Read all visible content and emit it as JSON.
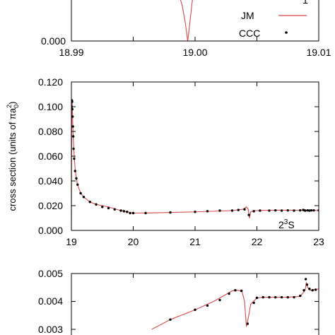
{
  "chart_data": [
    {
      "type": "line",
      "panel": "top",
      "xlim": [
        18.99,
        19.01
      ],
      "ylim": [
        0,
        0.02
      ],
      "xticks": [
        "18.99",
        "19.00",
        "19.01"
      ],
      "yticks": [
        "0.000"
      ],
      "legend": {
        "placement": "top-right",
        "entries": [
          {
            "label": "JM",
            "style": "line",
            "color": "#d9464a"
          },
          {
            "label": "CCC",
            "style": "dot",
            "color": "#000000"
          }
        ]
      },
      "series": [
        {
          "name": "JM",
          "color": "#d9464a",
          "x": [
            18.99865,
            18.99895,
            18.9992,
            18.99933,
            18.9994,
            18.99948,
            18.99963,
            18.99985
          ],
          "y": [
            0.02,
            0.015,
            0.008,
            0.003,
            0.0,
            0.003,
            0.01,
            0.02
          ]
        }
      ],
      "annotations": [
        {
          "text": "1",
          "position": "top-right",
          "note": "superscript S partially cropped"
        }
      ]
    },
    {
      "type": "line",
      "panel": "middle",
      "ylabel": "cross section (units of πa",
      "ylabel_sub": "0",
      "ylabel_sup": "2",
      "ylabel_end": ")",
      "xlim": [
        19,
        23
      ],
      "ylim": [
        0,
        0.12
      ],
      "xticks": [
        "19",
        "20",
        "21",
        "22",
        "23"
      ],
      "yticks": [
        "0.000",
        "0.020",
        "0.040",
        "0.060",
        "0.080",
        "0.100",
        "0.120"
      ],
      "annotation": {
        "pre": "2",
        "sup": "3",
        "post": "S",
        "position": "bottom-right"
      },
      "series": [
        {
          "name": "JM",
          "color": "#d9464a",
          "x": [
            19.0,
            19.005,
            19.01,
            19.015,
            19.02,
            19.03,
            19.045,
            19.06,
            19.08,
            19.1,
            19.15,
            19.2,
            19.3,
            19.4,
            19.6,
            19.8,
            20.0,
            20.3,
            20.6,
            21.0,
            21.3,
            21.6,
            21.78,
            21.83,
            21.86,
            21.88,
            21.9,
            21.95,
            22.0,
            22.1,
            22.3,
            22.5,
            22.7,
            22.77,
            22.8,
            22.83,
            22.87,
            22.92,
            23.0
          ],
          "y": [
            0.0,
            0.1,
            0.106,
            0.1,
            0.09,
            0.075,
            0.06,
            0.05,
            0.042,
            0.037,
            0.03,
            0.027,
            0.023,
            0.021,
            0.019,
            0.016,
            0.014,
            0.0142,
            0.0145,
            0.015,
            0.0155,
            0.016,
            0.0172,
            0.019,
            0.017,
            0.01,
            0.015,
            0.016,
            0.016,
            0.0162,
            0.0163,
            0.0163,
            0.0162,
            0.0168,
            0.0158,
            0.0164,
            0.0158,
            0.0162,
            0.0162
          ]
        },
        {
          "name": "CCC",
          "color": "#000000",
          "x": [
            19.005,
            19.008,
            19.012,
            19.016,
            19.02,
            19.025,
            19.03,
            19.035,
            19.045,
            19.06,
            19.08,
            19.1,
            19.15,
            19.2,
            19.3,
            19.4,
            19.5,
            19.6,
            19.7,
            19.8,
            19.85,
            19.9,
            19.95,
            20.0,
            20.2,
            20.6,
            21.0,
            21.2,
            21.4,
            21.6,
            21.7,
            21.8,
            21.87,
            21.95,
            22.05,
            22.2,
            22.3,
            22.4,
            22.5,
            22.6,
            22.7,
            22.75,
            22.78,
            22.82,
            22.85,
            22.88,
            22.92,
            23.0
          ],
          "y": [
            0.1,
            0.105,
            0.104,
            0.098,
            0.092,
            0.084,
            0.076,
            0.066,
            0.058,
            0.048,
            0.042,
            0.037,
            0.03,
            0.027,
            0.023,
            0.021,
            0.019,
            0.018,
            0.017,
            0.016,
            0.0155,
            0.015,
            0.014,
            0.014,
            0.014,
            0.0145,
            0.015,
            0.0155,
            0.016,
            0.016,
            0.0165,
            0.017,
            0.0125,
            0.0155,
            0.016,
            0.016,
            0.0162,
            0.016,
            0.0162,
            0.016,
            0.0162,
            0.0165,
            0.016,
            0.0162,
            0.016,
            0.0162,
            0.0162,
            0.0162
          ]
        }
      ]
    },
    {
      "type": "line",
      "panel": "bottom",
      "xlim": [
        19,
        23
      ],
      "ylim": [
        0.003,
        0.005
      ],
      "yticks": [
        "0.005",
        "0.004",
        "0.003"
      ],
      "series": [
        {
          "name": "JM",
          "color": "#d9464a",
          "x": [
            20.3,
            20.6,
            21.0,
            21.3,
            21.5,
            21.6,
            21.7,
            21.76,
            21.8,
            21.83,
            21.86,
            21.9,
            22.0,
            22.1,
            22.3,
            22.5,
            22.7,
            22.78,
            22.8,
            22.82,
            22.86,
            22.92,
            23.0
          ],
          "y": [
            0.003,
            0.00335,
            0.0037,
            0.004,
            0.00425,
            0.00438,
            0.0044,
            0.00435,
            0.004,
            0.0031,
            0.0034,
            0.0039,
            0.00412,
            0.00415,
            0.00415,
            0.00415,
            0.00418,
            0.0044,
            0.00468,
            0.0045,
            0.0044,
            0.00442,
            0.00445
          ]
        },
        {
          "name": "CCC",
          "color": "#000000",
          "x": [
            20.6,
            21.0,
            21.2,
            21.4,
            21.55,
            21.65,
            21.75,
            21.85,
            21.95,
            22.0,
            22.1,
            22.2,
            22.3,
            22.4,
            22.5,
            22.6,
            22.7,
            22.76,
            22.79,
            22.81,
            22.85,
            22.9,
            22.95
          ],
          "y": [
            0.00335,
            0.0037,
            0.00385,
            0.00405,
            0.00428,
            0.0044,
            0.00438,
            0.0032,
            0.00395,
            0.00413,
            0.00415,
            0.00415,
            0.00415,
            0.00415,
            0.00415,
            0.00415,
            0.0042,
            0.0044,
            0.0048,
            0.0046,
            0.00445,
            0.0044,
            0.00442
          ]
        }
      ]
    }
  ]
}
